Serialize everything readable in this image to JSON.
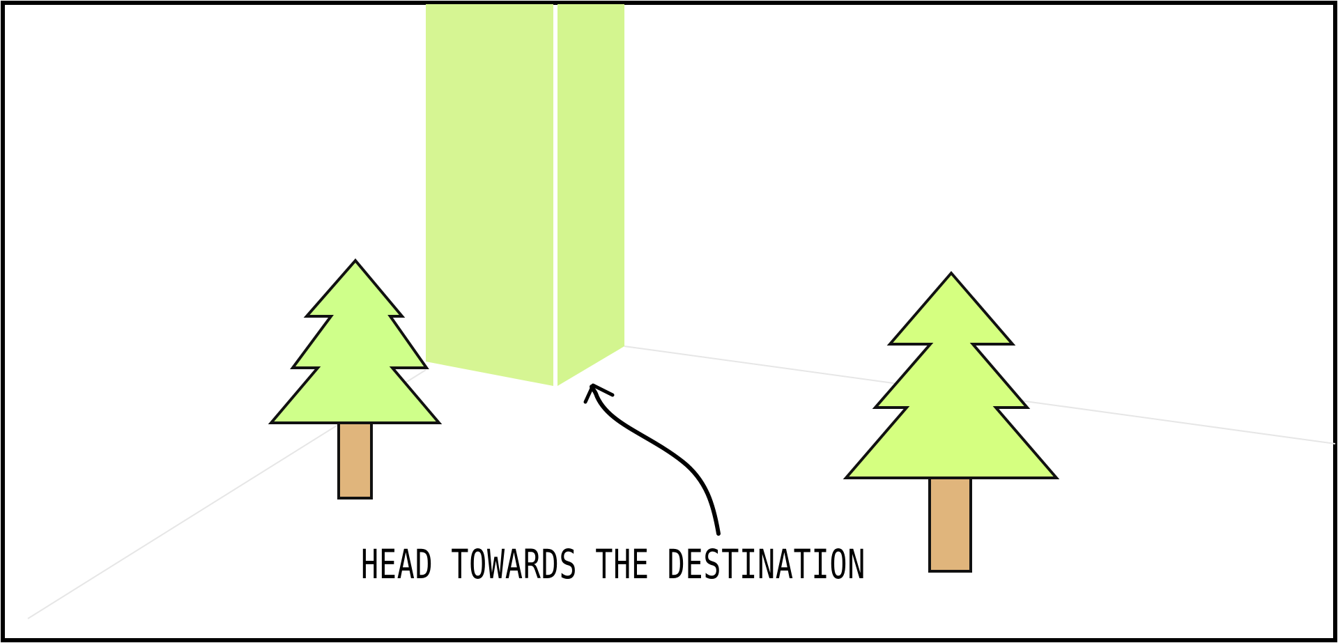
{
  "scene": {
    "instruction": "HEAD TOWARDS THE DESTINATION",
    "colors": {
      "frame": "#000000",
      "background": "#ffffff",
      "destination_left_face": "#d6f593",
      "destination_right_face": "#d3f58f",
      "tree_left_foliage": "#cfff8a",
      "tree_right_foliage": "#d5ff80",
      "tree_trunk": "#e0b57c",
      "outline": "#111111"
    },
    "icons": {
      "destination": "destination-pillar",
      "tree_left": "pine-tree-icon",
      "tree_right": "pine-tree-icon",
      "arrow": "curved-arrow-icon"
    }
  }
}
